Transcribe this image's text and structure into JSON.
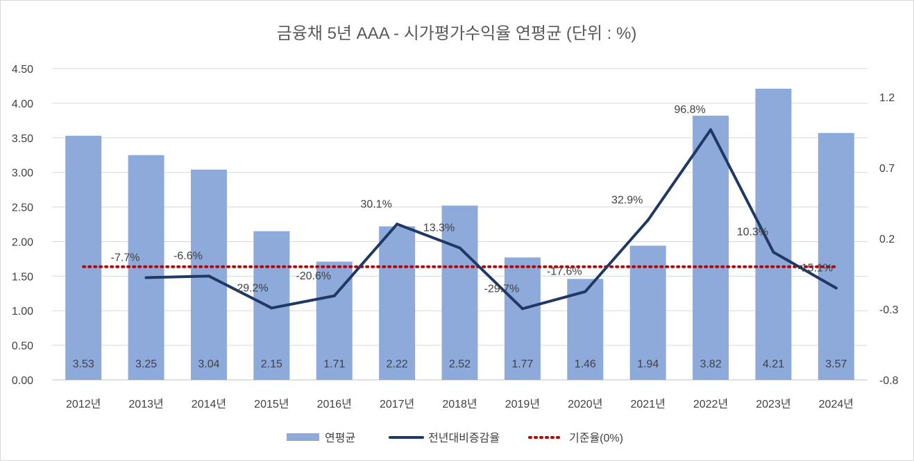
{
  "chart_data": {
    "type": "bar",
    "title": "금융채 5년 AAA - 시가평가수익율 연평균 (단위 : %)",
    "categories": [
      "2012년",
      "2013년",
      "2014년",
      "2015년",
      "2016년",
      "2017년",
      "2018년",
      "2019년",
      "2020년",
      "2021년",
      "2022년",
      "2023년",
      "2024년"
    ],
    "y_left": {
      "ylim": [
        0,
        4.5
      ],
      "ticks": [
        "0.00",
        "0.50",
        "1.00",
        "1.50",
        "2.00",
        "2.50",
        "3.00",
        "3.50",
        "4.00",
        "4.50"
      ]
    },
    "y_right": {
      "ylim": [
        -0.8,
        1.4
      ],
      "ticks": [
        "-0.8",
        "-0.3",
        "0.2",
        "0.7",
        "1.2"
      ]
    },
    "grid": true,
    "legend_position": "bottom",
    "series": [
      {
        "name": "연평균",
        "type": "bar",
        "axis": "left",
        "color": "#8eaadb",
        "values": [
          3.53,
          3.25,
          3.04,
          2.15,
          1.71,
          2.22,
          2.52,
          1.77,
          1.46,
          1.94,
          3.82,
          4.21,
          3.57
        ],
        "labels": [
          "3.53",
          "3.25",
          "3.04",
          "2.15",
          "1.71",
          "2.22",
          "2.52",
          "1.77",
          "1.46",
          "1.94",
          "3.82",
          "4.21",
          "3.57"
        ]
      },
      {
        "name": "전년대비증감율",
        "type": "line",
        "axis": "right",
        "color": "#203864",
        "values": [
          null,
          -0.077,
          -0.066,
          -0.292,
          -0.206,
          0.301,
          0.133,
          -0.297,
          -0.176,
          0.329,
          0.968,
          0.103,
          -0.151
        ],
        "labels": [
          "",
          "-7.7%",
          "-6.6%",
          "-29.2%",
          "-20.6%",
          "30.1%",
          "13.3%",
          "-29.7%",
          "-17.6%",
          "32.9%",
          "96.8%",
          "10.3%",
          "-15.1%"
        ]
      },
      {
        "name": "기준율(0%)",
        "type": "line",
        "style": "dotted",
        "axis": "right",
        "color": "#c00000",
        "values": [
          0,
          0,
          0,
          0,
          0,
          0,
          0,
          0,
          0,
          0,
          0,
          0,
          0
        ]
      }
    ]
  }
}
